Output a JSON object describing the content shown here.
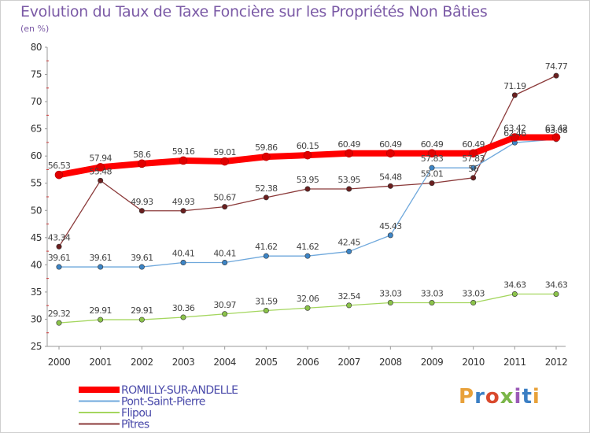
{
  "title": "Evolution du Taux de Taxe Foncière sur les Propriétés Non Bâties",
  "unit": "(en %)",
  "logo": {
    "text": "Proxiti",
    "colors": [
      "#e8a13a",
      "#3b7fc4",
      "#d9492d",
      "#7ab648",
      "#9b59b6",
      "#3b7fc4",
      "#e8a13a"
    ]
  },
  "chart_data": {
    "type": "line",
    "x": [
      "2000",
      "2001",
      "2002",
      "2003",
      "2004",
      "2005",
      "2006",
      "2007",
      "2008",
      "2009",
      "2010",
      "2011",
      "2012"
    ],
    "ylim": [
      25,
      80
    ],
    "yticks": [
      25,
      30,
      35,
      40,
      45,
      50,
      55,
      60,
      65,
      70,
      75,
      80
    ],
    "grid": false,
    "legend": "bottom-left",
    "series": [
      {
        "name": "ROMILLY-SUR-ANDELLE",
        "color": "#ff0000",
        "marker": "#e00000",
        "width": 8,
        "values": [
          56.53,
          57.94,
          58.6,
          59.16,
          59.01,
          59.86,
          60.15,
          60.49,
          60.49,
          60.49,
          60.49,
          63.42,
          63.42
        ],
        "labels": [
          "56.53",
          "57.94",
          "58.6",
          "59.16",
          "59.01",
          "59.86",
          "60.15",
          "60.49",
          "60.49",
          "60.49",
          "60.49",
          "63.42",
          "63.42"
        ]
      },
      {
        "name": "Pont-Saint-Pierre",
        "color": "#6fa8dc",
        "marker": "#3d85c6",
        "width": 1.3,
        "values": [
          39.61,
          39.61,
          39.61,
          40.41,
          40.41,
          41.62,
          41.62,
          42.45,
          45.43,
          57.83,
          57.83,
          62.46,
          63.08
        ],
        "labels": [
          "39.61",
          "39.61",
          "39.61",
          "40.41",
          "40.41",
          "41.62",
          "41.62",
          "42.45",
          "45.43",
          "57.83",
          "57.83",
          "62.46",
          "63.08"
        ]
      },
      {
        "name": "Flipou",
        "color": "#a4d65e",
        "marker": "#8bc34a",
        "width": 1.3,
        "values": [
          29.32,
          29.91,
          29.91,
          30.36,
          30.97,
          31.59,
          32.06,
          32.54,
          33.03,
          33.03,
          33.03,
          34.63,
          34.63
        ],
        "labels": [
          "29.32",
          "29.91",
          "29.91",
          "30.36",
          "30.97",
          "31.59",
          "32.06",
          "32.54",
          "33.03",
          "33.03",
          "33.03",
          "34.63",
          "34.63"
        ]
      },
      {
        "name": "Pîtres",
        "color": "#8b3a3a",
        "marker": "#6b1f1f",
        "width": 1.3,
        "values": [
          43.34,
          55.48,
          49.93,
          49.93,
          50.67,
          52.38,
          53.95,
          53.95,
          54.48,
          55.01,
          56,
          71.19,
          74.77
        ],
        "labels": [
          "43.34",
          "55.48",
          "49.93",
          "49.93",
          "50.67",
          "52.38",
          "53.95",
          "53.95",
          "54.48",
          "55.01",
          "56",
          "71.19",
          "74.77"
        ]
      }
    ]
  }
}
